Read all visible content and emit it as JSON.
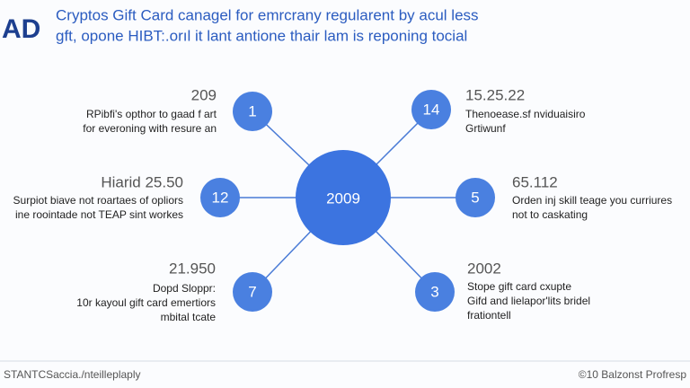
{
  "header": {
    "logo": "AD",
    "title_lines": [
      "Cryptos Gift Card canagel for emrcrany regularent by acul less",
      "gft, opone HIBT:.orıl it lant antione thair lam is reponing tocial"
    ]
  },
  "center": {
    "label": "2009"
  },
  "nodes": [
    {
      "number": "1",
      "heading": "209",
      "lines": [
        "RPibfi's opthor to gaad f art",
        "for everoning with resure an"
      ]
    },
    {
      "number": "12",
      "heading": "Hiarid 25.50",
      "lines": [
        "Surpiot biave not roartaes of opliors",
        "ine roointade not TEAP sint workes"
      ]
    },
    {
      "number": "7",
      "heading": "21.950",
      "lines": [
        "Dopd Slоppr:",
        "10r kayoul gift card emertiors",
        "mbital tcate"
      ]
    },
    {
      "number": "14",
      "heading": "15.25.22",
      "lines": [
        "Thenoease.sf nviduaisiro",
        "Grtiwunf"
      ]
    },
    {
      "number": "5",
      "heading": "65.112",
      "lines": [
        "Orden inj skill teage you curriures",
        "not to caskating"
      ]
    },
    {
      "number": "3",
      "heading": "2002",
      "lines": [
        "Stope gift card cxupte",
        "Gifd and lielapor'lits bridel",
        "frationtell"
      ]
    }
  ],
  "footer": {
    "left": "STANTCSaccia./nteilleplaply",
    "right": "©10 Balzonst Profresp"
  }
}
